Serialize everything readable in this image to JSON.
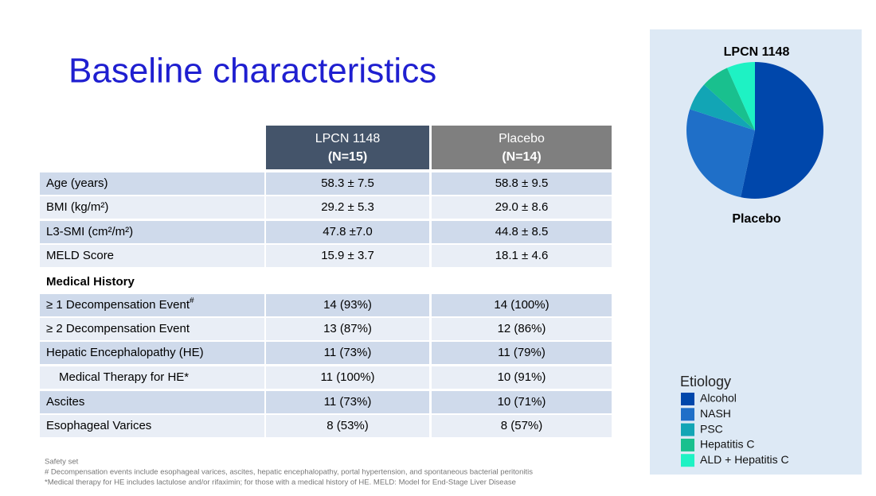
{
  "title": "Baseline characteristics",
  "table": {
    "headers": [
      {
        "name": "LPCN 1148",
        "n": "(N=15)",
        "color": "#44546a"
      },
      {
        "name": "Placebo",
        "n": "(N=14)",
        "color": "#7f7f7f"
      }
    ],
    "rows": [
      {
        "label": "Age (years)",
        "values": [
          "58.3 ± 7.5",
          "58.8 ± 9.5"
        ]
      },
      {
        "label": "BMI (kg/m²)",
        "values": [
          "29.2 ± 5.3",
          "29.0 ± 8.6"
        ]
      },
      {
        "label": "L3-SMI (cm²/m²)",
        "values": [
          "47.8 ±7.0",
          "44.8 ± 8.5"
        ]
      },
      {
        "label": "MELD Score",
        "values": [
          "15.9 ± 3.7",
          "18.1 ± 4.6"
        ]
      },
      {
        "label": "Medical History",
        "section": true
      },
      {
        "label": "≥ 1 Decompensation Event",
        "sup": "#",
        "values": [
          "14 (93%)",
          "14 (100%)"
        ]
      },
      {
        "label": "≥ 2 Decompensation Event",
        "values": [
          "13 (87%)",
          "12 (86%)"
        ]
      },
      {
        "label": "Hepatic Encephalopathy (HE)",
        "values": [
          "11 (73%)",
          "11 (79%)"
        ]
      },
      {
        "label": "Medical Therapy for HE*",
        "indent": true,
        "values": [
          "11 (100%)",
          "10 (91%)"
        ]
      },
      {
        "label": "Ascites",
        "values": [
          "11 (73%)",
          "10 (71%)"
        ]
      },
      {
        "label": "Esophageal Varices",
        "values": [
          "8 (53%)",
          "8 (57%)"
        ]
      }
    ]
  },
  "footnotes": [
    "Safety set",
    "# Decompensation events include esophageal varices, ascites, hepatic encephalopathy, portal hypertension, and spontaneous bacterial peritonitis",
    "*Medical therapy for HE includes lactulose and/or rifaximin; for those with a medical history of HE. MELD: Model for End-Stage Liver Disease"
  ],
  "chart_data": {
    "type": "pie",
    "title": "LPCN 1148",
    "subtitle": "Placebo",
    "legend_title": "Etiology",
    "categories": [
      "Alcohol",
      "NASH",
      "PSC",
      "Hepatitis C",
      "ALD + Hepatitis C"
    ],
    "values": [
      8,
      4,
      1,
      1,
      1
    ],
    "colors": [
      "#0047ab",
      "#1f6fc8",
      "#12a5b5",
      "#19c08e",
      "#1ef2c4"
    ]
  }
}
